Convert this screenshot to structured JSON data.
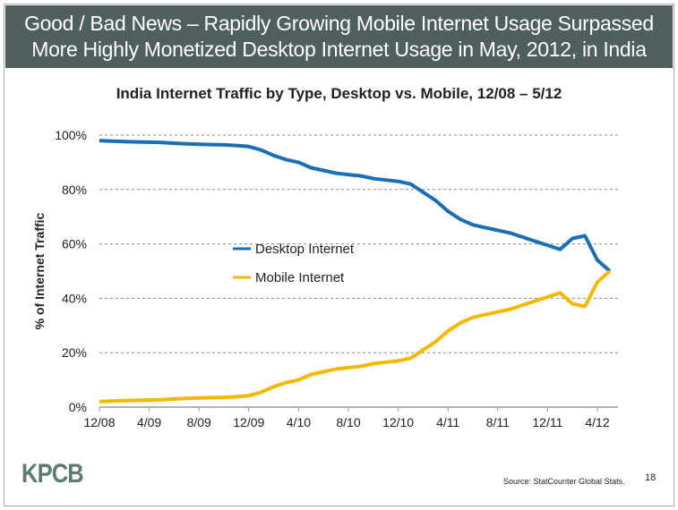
{
  "header": {
    "line1": "Good / Bad News – Rapidly Growing Mobile Internet Usage Surpassed",
    "line2": "More Highly Monetized Desktop Internet Usage in May, 2012, in India"
  },
  "footer": {
    "logo": "KPCB",
    "source": "Source: StatCounter Global Stats.",
    "page_number": "18"
  },
  "colors": {
    "header_bg": "#4f5f5d",
    "desktop": "#1a6eb5",
    "mobile": "#f5b800",
    "logo": "#5f7a72"
  },
  "chart_data": {
    "type": "line",
    "title": "India Internet Traffic by Type, Desktop vs. Mobile, 12/08 – 5/12",
    "xlabel": "",
    "ylabel": "% of Internet Traffic",
    "ylim": [
      0,
      100
    ],
    "yticks": [
      "0%",
      "20%",
      "40%",
      "60%",
      "80%",
      "100%"
    ],
    "xticks": [
      "12/08",
      "4/09",
      "8/09",
      "12/09",
      "4/10",
      "8/10",
      "12/10",
      "4/11",
      "8/11",
      "12/11",
      "4/12"
    ],
    "grid": "horizontal dashed",
    "legend_placement": "center-left",
    "x": [
      "12/08",
      "1/09",
      "2/09",
      "3/09",
      "4/09",
      "5/09",
      "6/09",
      "7/09",
      "8/09",
      "9/09",
      "10/09",
      "11/09",
      "12/09",
      "1/10",
      "2/10",
      "3/10",
      "4/10",
      "5/10",
      "6/10",
      "7/10",
      "8/10",
      "9/10",
      "10/10",
      "11/10",
      "12/10",
      "1/11",
      "2/11",
      "3/11",
      "4/11",
      "5/11",
      "6/11",
      "7/11",
      "8/11",
      "9/11",
      "10/11",
      "11/11",
      "12/11",
      "1/12",
      "2/12",
      "3/12",
      "4/12",
      "5/12"
    ],
    "series": [
      {
        "name": "Desktop Internet",
        "color": "#1a6eb5",
        "values": [
          98,
          97.8,
          97.6,
          97.5,
          97.4,
          97.3,
          97,
          96.8,
          96.6,
          96.5,
          96.4,
          96.2,
          95.8,
          94.5,
          92.5,
          91,
          90,
          88,
          87,
          86,
          85.5,
          85,
          84,
          83.5,
          83,
          82,
          79,
          76,
          72,
          69,
          67,
          66,
          65,
          64,
          62.5,
          61,
          59.5,
          58,
          62,
          63,
          54,
          50
        ]
      },
      {
        "name": "Mobile Internet",
        "color": "#f5b800",
        "values": [
          2,
          2.2,
          2.4,
          2.5,
          2.6,
          2.7,
          3,
          3.2,
          3.4,
          3.5,
          3.6,
          3.8,
          4.2,
          5.5,
          7.5,
          9,
          10,
          12,
          13,
          14,
          14.5,
          15,
          16,
          16.5,
          17,
          18,
          21,
          24,
          28,
          31,
          33,
          34,
          35,
          36,
          37.5,
          39,
          40.5,
          42,
          38,
          37,
          46,
          50
        ]
      }
    ]
  }
}
